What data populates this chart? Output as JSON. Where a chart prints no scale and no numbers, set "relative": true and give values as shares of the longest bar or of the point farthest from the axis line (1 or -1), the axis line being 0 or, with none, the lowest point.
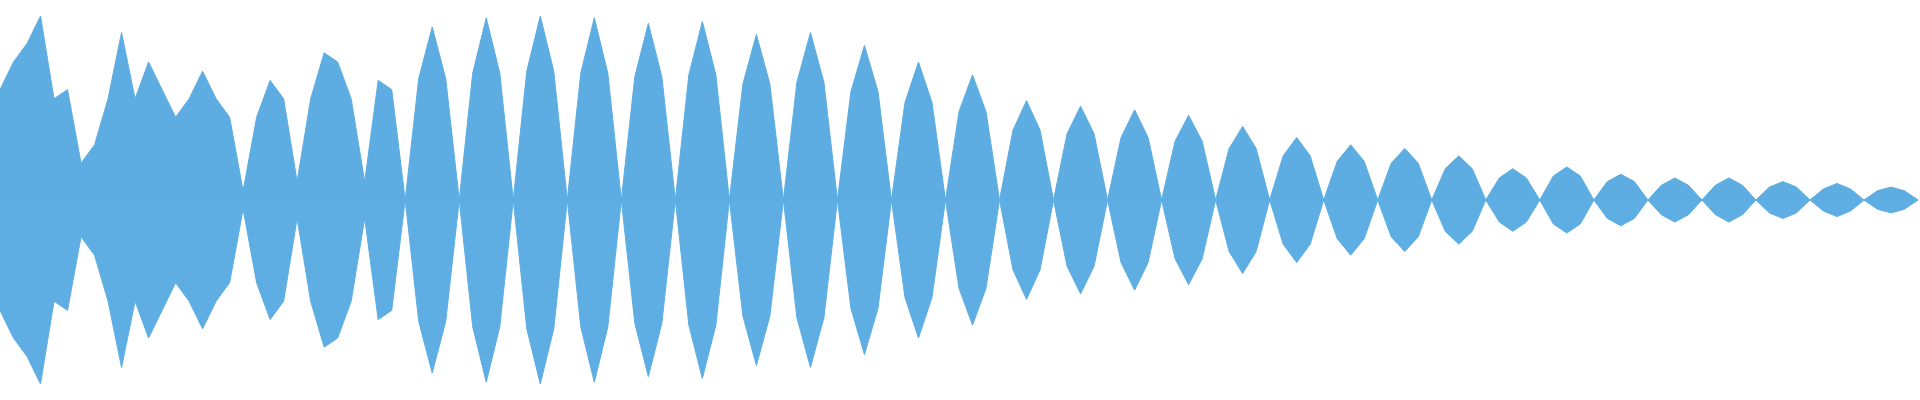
{
  "chart_data": {
    "type": "area",
    "relative": true,
    "categories": [
      null,
      null,
      null,
      null,
      null,
      null,
      null,
      null,
      null,
      null,
      null,
      null,
      null,
      null,
      null,
      null,
      null,
      null,
      null,
      null,
      null,
      null,
      null,
      null,
      null,
      null,
      null,
      null,
      null,
      null,
      null,
      null,
      null,
      null,
      null,
      null,
      null,
      null,
      null,
      null,
      null,
      null,
      null,
      null,
      null,
      null,
      null,
      null,
      null,
      null,
      null,
      null,
      null,
      null,
      null,
      null,
      null,
      null,
      null,
      null,
      null,
      null,
      null,
      null,
      null,
      null,
      null,
      null,
      null,
      null,
      null,
      null,
      null,
      null,
      null,
      null,
      null,
      null,
      null,
      null,
      null,
      null,
      null,
      null,
      null,
      null,
      null,
      null,
      null,
      null,
      null,
      null,
      null,
      null,
      null,
      null,
      null,
      null,
      null,
      null,
      null,
      null,
      null,
      null,
      null,
      null,
      null,
      null,
      null,
      null,
      null,
      null,
      null,
      null,
      null,
      null,
      null,
      null,
      null,
      null,
      null,
      null,
      null,
      null,
      null,
      null,
      null,
      null,
      null,
      null,
      null,
      null,
      null,
      null,
      null,
      null,
      null,
      null,
      null,
      null,
      null,
      null,
      null
    ],
    "ref_lines": [
      {
        "axis": "y",
        "value": 0,
        "color": "#5dade2"
      }
    ],
    "series": [
      {
        "color": "#5dade2",
        "values": [
          0.6,
          0.75,
          0.85,
          1.0,
          0.55,
          0.6,
          0.2,
          0.3,
          0.55,
          0.91,
          0.55,
          0.75,
          0.6,
          0.45,
          0.55,
          0.7,
          0.55,
          0.45,
          0.05,
          0.45,
          0.65,
          0.55,
          0.1,
          0.55,
          0.8,
          0.75,
          0.55,
          0.1,
          0.65,
          0.6,
          0,
          0.66,
          0.94,
          0.66,
          0,
          0.69,
          0.99,
          0.69,
          0,
          0.7,
          1.0,
          0.7,
          0,
          0.69,
          0.99,
          0.69,
          0,
          0.67,
          0.96,
          0.67,
          0,
          0.68,
          0.97,
          0.68,
          0,
          0.63,
          0.9,
          0.63,
          0,
          0.64,
          0.91,
          0.64,
          0,
          0.59,
          0.84,
          0.59,
          0,
          0.53,
          0.75,
          0.53,
          0,
          0.48,
          0.68,
          0.48,
          0,
          0.38,
          0.54,
          0.38,
          0,
          0.36,
          0.51,
          0.36,
          0,
          0.34,
          0.49,
          0.34,
          0,
          0.32,
          0.46,
          0.32,
          0,
          0.28,
          0.4,
          0.28,
          0,
          0.24,
          0.34,
          0.24,
          0,
          0.21,
          0.3,
          0.21,
          0,
          0.2,
          0.28,
          0.2,
          0,
          0.17,
          0.24,
          0.17,
          0,
          0.12,
          0.17,
          0.12,
          0,
          0.13,
          0.18,
          0.13,
          0,
          0.1,
          0.14,
          0.1,
          0,
          0.08,
          0.12,
          0.08,
          0,
          0.08,
          0.12,
          0.08,
          0,
          0.07,
          0.1,
          0.07,
          0,
          0.06,
          0.09,
          0.06,
          0,
          0.05,
          0.07,
          0.05,
          0
        ]
      },
      {
        "color": "#5eaee3",
        "values": [
          -0.6,
          -0.75,
          -0.85,
          -1.0,
          -0.55,
          -0.6,
          -0.2,
          -0.3,
          -0.55,
          -0.91,
          -0.55,
          -0.75,
          -0.6,
          -0.45,
          -0.55,
          -0.7,
          -0.55,
          -0.45,
          -0.05,
          -0.45,
          -0.65,
          -0.55,
          -0.1,
          -0.55,
          -0.8,
          -0.75,
          -0.55,
          -0.1,
          -0.65,
          -0.6,
          0,
          -0.66,
          -0.94,
          -0.66,
          0,
          -0.69,
          -0.99,
          -0.69,
          0,
          -0.7,
          -1.0,
          -0.7,
          0,
          -0.69,
          -0.99,
          -0.69,
          0,
          -0.67,
          -0.96,
          -0.67,
          0,
          -0.68,
          -0.97,
          -0.68,
          0,
          -0.63,
          -0.9,
          -0.63,
          0,
          -0.64,
          -0.91,
          -0.64,
          0,
          -0.59,
          -0.84,
          -0.59,
          0,
          -0.53,
          -0.75,
          -0.53,
          0,
          -0.48,
          -0.68,
          -0.48,
          0,
          -0.38,
          -0.54,
          -0.38,
          0,
          -0.36,
          -0.51,
          -0.36,
          0,
          -0.34,
          -0.49,
          -0.34,
          0,
          -0.32,
          -0.46,
          -0.32,
          0,
          -0.28,
          -0.4,
          -0.28,
          0,
          -0.24,
          -0.34,
          -0.24,
          0,
          -0.21,
          -0.3,
          -0.21,
          0,
          -0.2,
          -0.28,
          -0.2,
          0,
          -0.17,
          -0.24,
          -0.17,
          0,
          -0.12,
          -0.17,
          -0.12,
          0,
          -0.13,
          -0.18,
          -0.13,
          0,
          -0.1,
          -0.14,
          -0.1,
          0,
          -0.08,
          -0.12,
          -0.08,
          0,
          -0.08,
          -0.12,
          -0.08,
          0,
          -0.07,
          -0.1,
          -0.07,
          0,
          -0.06,
          -0.09,
          -0.06,
          0,
          -0.05,
          -0.07,
          -0.05,
          0
        ]
      }
    ]
  }
}
